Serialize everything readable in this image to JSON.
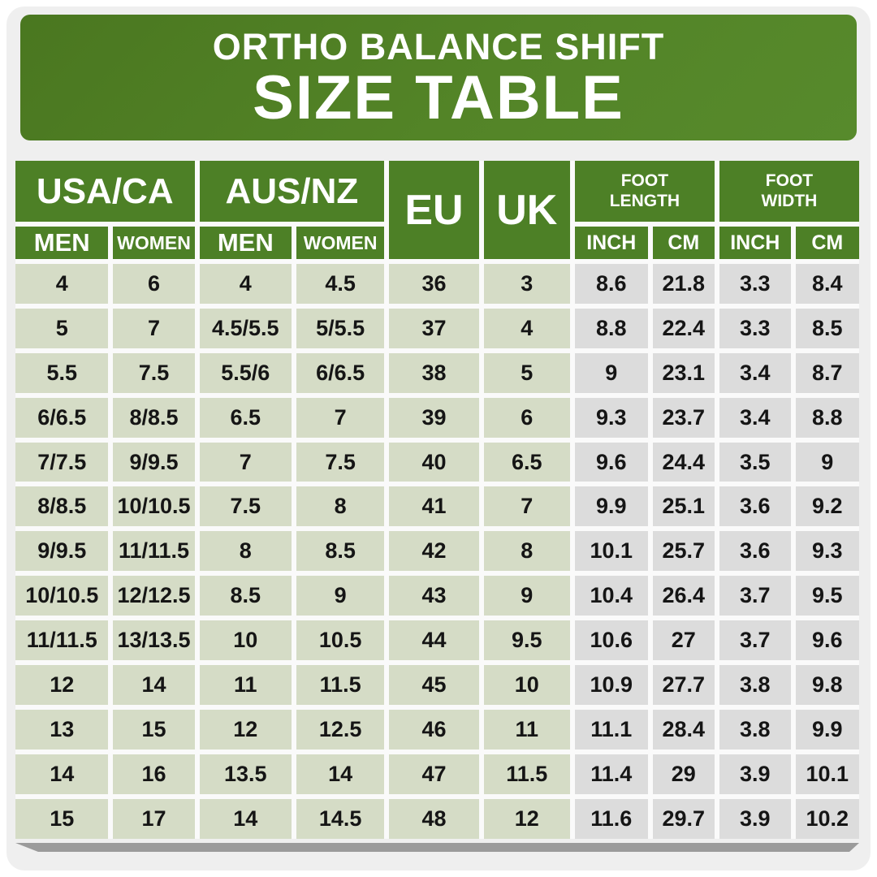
{
  "banner": {
    "line1": "ORTHO BALANCE SHIFT",
    "line2": "SIZE TABLE"
  },
  "header": {
    "usa_ca": "USA/CA",
    "aus_nz": "AUS/NZ",
    "eu": "EU",
    "uk": "UK",
    "foot_length": "FOOT LENGTH",
    "foot_width": "FOOT WIDTH",
    "men": "MEN",
    "women": "WOMEN",
    "inch": "INCH",
    "cm": "CM"
  },
  "colors": {
    "panel_bg": "#efefef",
    "gap_bg": "#fafafa",
    "green_banner": "#538427",
    "green_dark": "#4a7720",
    "green_light": "#578a2c",
    "green_header": "#4d8026",
    "cell_green": "#d5dcc6",
    "cell_gray": "#dcdcdc",
    "shadow_gray": "#9b9b9b"
  },
  "chart_data": {
    "type": "table",
    "title": "ORTHO BALANCE SHIFT SIZE TABLE",
    "columns": [
      "USA/CA MEN",
      "USA/CA WOMEN",
      "AUS/NZ MEN",
      "AUS/NZ WOMEN",
      "EU",
      "UK",
      "FOOT LENGTH INCH",
      "FOOT LENGTH CM",
      "FOOT WIDTH INCH",
      "FOOT WIDTH CM"
    ],
    "rows": [
      [
        "4",
        "6",
        "4",
        "4.5",
        "36",
        "3",
        "8.6",
        "21.8",
        "3.3",
        "8.4"
      ],
      [
        "5",
        "7",
        "4.5/5.5",
        "5/5.5",
        "37",
        "4",
        "8.8",
        "22.4",
        "3.3",
        "8.5"
      ],
      [
        "5.5",
        "7.5",
        "5.5/6",
        "6/6.5",
        "38",
        "5",
        "9",
        "23.1",
        "3.4",
        "8.7"
      ],
      [
        "6/6.5",
        "8/8.5",
        "6.5",
        "7",
        "39",
        "6",
        "9.3",
        "23.7",
        "3.4",
        "8.8"
      ],
      [
        "7/7.5",
        "9/9.5",
        "7",
        "7.5",
        "40",
        "6.5",
        "9.6",
        "24.4",
        "3.5",
        "9"
      ],
      [
        "8/8.5",
        "10/10.5",
        "7.5",
        "8",
        "41",
        "7",
        "9.9",
        "25.1",
        "3.6",
        "9.2"
      ],
      [
        "9/9.5",
        "11/11.5",
        "8",
        "8.5",
        "42",
        "8",
        "10.1",
        "25.7",
        "3.6",
        "9.3"
      ],
      [
        "10/10.5",
        "12/12.5",
        "8.5",
        "9",
        "43",
        "9",
        "10.4",
        "26.4",
        "3.7",
        "9.5"
      ],
      [
        "11/11.5",
        "13/13.5",
        "10",
        "10.5",
        "44",
        "9.5",
        "10.6",
        "27",
        "3.7",
        "9.6"
      ],
      [
        "12",
        "14",
        "11",
        "11.5",
        "45",
        "10",
        "10.9",
        "27.7",
        "3.8",
        "9.8"
      ],
      [
        "13",
        "15",
        "12",
        "12.5",
        "46",
        "11",
        "11.1",
        "28.4",
        "3.8",
        "9.9"
      ],
      [
        "14",
        "16",
        "13.5",
        "14",
        "47",
        "11.5",
        "11.4",
        "29",
        "3.9",
        "10.1"
      ],
      [
        "15",
        "17",
        "14",
        "14.5",
        "48",
        "12",
        "11.6",
        "29.7",
        "3.9",
        "10.2"
      ]
    ]
  }
}
